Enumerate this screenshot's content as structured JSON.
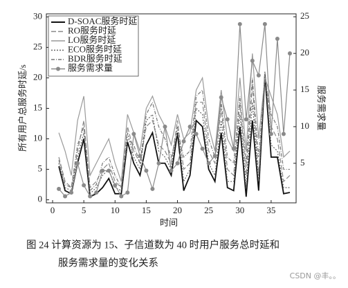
{
  "chart_data": {
    "type": "line",
    "xlabel": "时间",
    "ylabel": "所有用户总服务时延/s",
    "y2label": "服务需求量",
    "x": [
      1,
      2,
      3,
      4,
      5,
      6,
      7,
      8,
      9,
      10,
      11,
      12,
      13,
      14,
      15,
      16,
      17,
      18,
      19,
      20,
      21,
      22,
      23,
      24,
      25,
      26,
      27,
      28,
      29,
      30,
      31,
      32,
      33,
      34,
      35,
      36,
      37,
      38
    ],
    "xlim": [
      -1,
      39
    ],
    "xticks": [
      0,
      5,
      10,
      15,
      20,
      25,
      30,
      35
    ],
    "ylim": [
      -0.5,
      30.5
    ],
    "yticks": [
      0,
      5,
      10,
      15,
      20,
      25,
      30
    ],
    "y2lim": [
      -0.4,
      25.4
    ],
    "y2ticks": [
      5,
      10,
      15,
      20,
      25
    ],
    "legend": "upper left",
    "series": [
      {
        "name": "D-SOAC服务时延",
        "color": "#111111",
        "dash": "none",
        "width": 1.8,
        "values": [
          5.5,
          1.5,
          1,
          6,
          10,
          0.5,
          1,
          2,
          3.5,
          1,
          1,
          9.5,
          6,
          4,
          9,
          11,
          6,
          6,
          4,
          11,
          1.5,
          4,
          13,
          12,
          5,
          3,
          11,
          2,
          1.5,
          12,
          0.5,
          13,
          1.5,
          20.5,
          7,
          7,
          1,
          1.2
        ]
      },
      {
        "name": "RO服务时延",
        "color": "#888888",
        "dash": "7 3",
        "width": 1.2,
        "values": [
          7,
          3,
          2,
          8,
          13,
          2,
          3,
          5,
          6,
          3,
          2,
          12,
          8,
          6,
          12,
          13,
          9,
          8,
          6,
          13,
          5,
          6,
          16,
          16,
          8,
          6,
          15,
          5,
          4,
          16,
          4,
          19,
          4,
          21,
          12,
          10,
          3,
          4
        ]
      },
      {
        "name": "LO服务时延",
        "color": "#999999",
        "dash": "none",
        "width": 1.2,
        "values": [
          11,
          8,
          4,
          13,
          17,
          4,
          6,
          8,
          10,
          6,
          3,
          14,
          11,
          8,
          15,
          17,
          14,
          12,
          9,
          14,
          10,
          11,
          18,
          20,
          12,
          8,
          18,
          10,
          8,
          20,
          8,
          24,
          10,
          20,
          17,
          14,
          7,
          8
        ]
      },
      {
        "name": "ECO服务时延",
        "color": "#666666",
        "dash": "2 2",
        "width": 1.2,
        "values": [
          6,
          2,
          1.5,
          7,
          11,
          1,
          2,
          4,
          5,
          2,
          1.5,
          11,
          7,
          5,
          13,
          14,
          8,
          7,
          5,
          12,
          3,
          5,
          15,
          14,
          6,
          4,
          13,
          3,
          3,
          14,
          2,
          16,
          3,
          21,
          9,
          8,
          2,
          2
        ]
      },
      {
        "name": "BDR服务时延",
        "color": "#777777",
        "dash": "5 2 1 2",
        "width": 1.2,
        "values": [
          6.5,
          2.5,
          2,
          9,
          12,
          1.5,
          2.5,
          6,
          7,
          4,
          2,
          10,
          9,
          6,
          14,
          16,
          12,
          10,
          7,
          11,
          7,
          8,
          17,
          18,
          10,
          7,
          16,
          7,
          6,
          17,
          6,
          20,
          7,
          20,
          14,
          12,
          5,
          5
        ]
      },
      {
        "name": "服务需求量",
        "color": "#8a8a8a",
        "dash": "none",
        "width": 1.2,
        "axis": "y2",
        "marker": "circle",
        "values": [
          1.5,
          0.5,
          1,
          5,
          2,
          0.5,
          1,
          4,
          4,
          2,
          0.5,
          1,
          9,
          6,
          4,
          1.5,
          5,
          10,
          4,
          5,
          8,
          10,
          9,
          7,
          5,
          6,
          14,
          11,
          7,
          24,
          11,
          19,
          17,
          24,
          9,
          22,
          9,
          20
        ]
      }
    ],
    "caption": [
      "图 24   计算资源为 15、子信道数为 40 时用户服务总时延和",
      "服务需求量的变化关系"
    ],
    "watermark": "CSDN @丰。。"
  }
}
